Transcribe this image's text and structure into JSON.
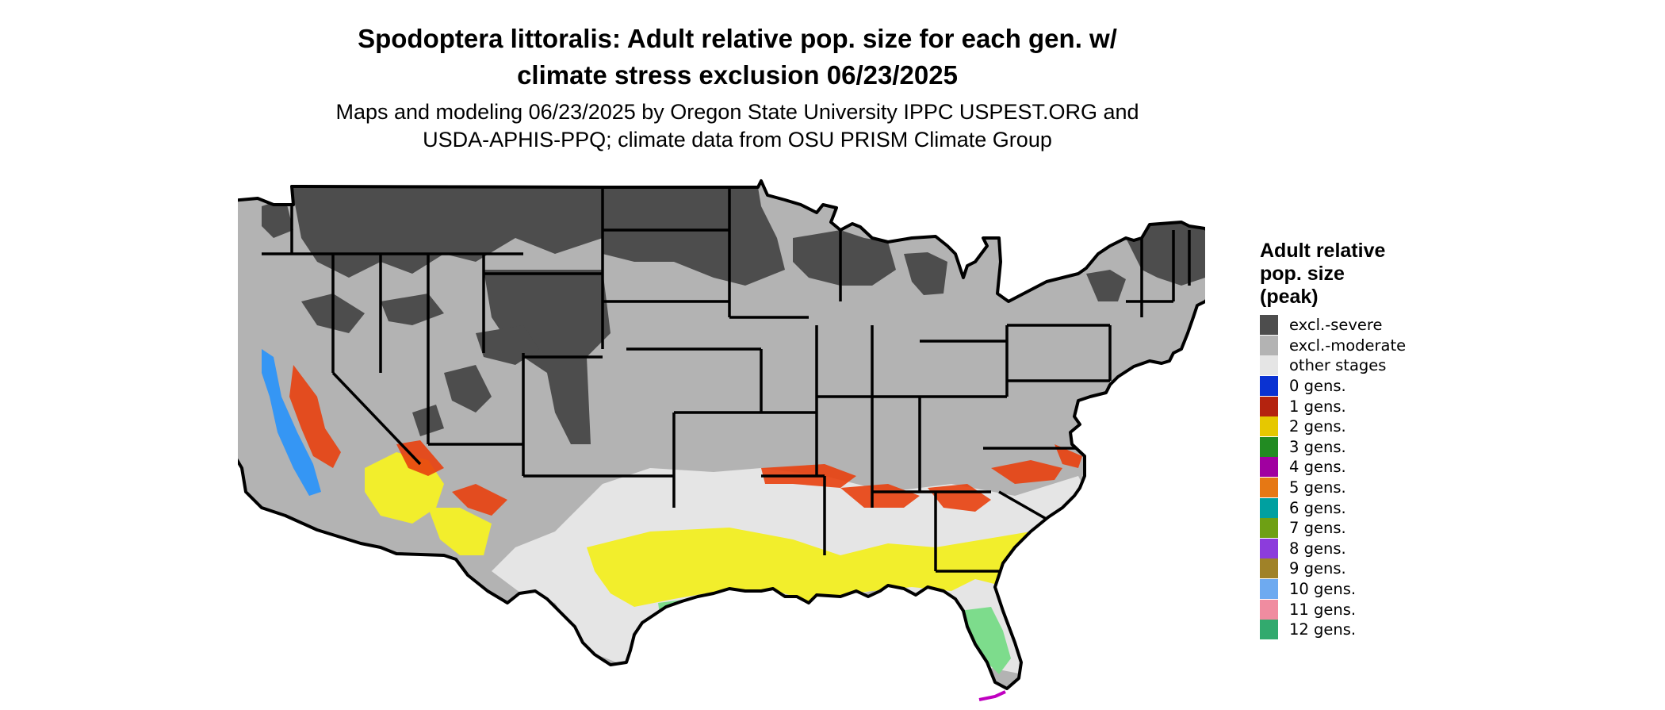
{
  "title_line1": "Spodoptera littoralis: Adult relative pop. size for each gen. w/",
  "title_line2": "climate stress exclusion 06/23/2025",
  "subtitle_line1": "Maps and modeling 06/23/2025 by Oregon State University IPPC USPEST.ORG and",
  "subtitle_line2": "USDA-APHIS-PPQ; climate data from OSU PRISM Climate Group",
  "legend": {
    "title_line1": "Adult relative",
    "title_line2": "pop. size",
    "title_line3": "(peak)",
    "items": [
      {
        "label": "excl.-severe",
        "color": "#4d4d4d"
      },
      {
        "label": "excl.-moderate",
        "color": "#b3b3b3"
      },
      {
        "label": "other stages",
        "color": "#e5e5e5"
      },
      {
        "label": "0 gens.",
        "color": "#0a32d2"
      },
      {
        "label": "1 gens.",
        "color": "#b4230f"
      },
      {
        "label": "2 gens.",
        "color": "#e6c800"
      },
      {
        "label": "3 gens.",
        "color": "#228b22"
      },
      {
        "label": "4 gens.",
        "color": "#a000a0"
      },
      {
        "label": "5 gens.",
        "color": "#e67814"
      },
      {
        "label": "6 gens.",
        "color": "#00a0a0"
      },
      {
        "label": "7 gens.",
        "color": "#6ea014"
      },
      {
        "label": "8 gens.",
        "color": "#8c3cdc"
      },
      {
        "label": "9 gens.",
        "color": "#a08228"
      },
      {
        "label": "10 gens.",
        "color": "#6eaaf0"
      },
      {
        "label": "11 gens.",
        "color": "#f08ca0"
      },
      {
        "label": "12 gens.",
        "color": "#32aa6e"
      }
    ]
  },
  "map": {
    "region": "Contiguous United States",
    "layer_colors": {
      "severe": "#4d4d4d",
      "moderate": "#b3b3b3",
      "other": "#e5e5e5",
      "one_gen": "#e8400e",
      "two_gen": "#f2ee2c",
      "ten_gen": "#1e90ff",
      "twelve_gen": "#7ddc8c",
      "four_gen": "#c000c0",
      "boundary": "#000000"
    }
  }
}
